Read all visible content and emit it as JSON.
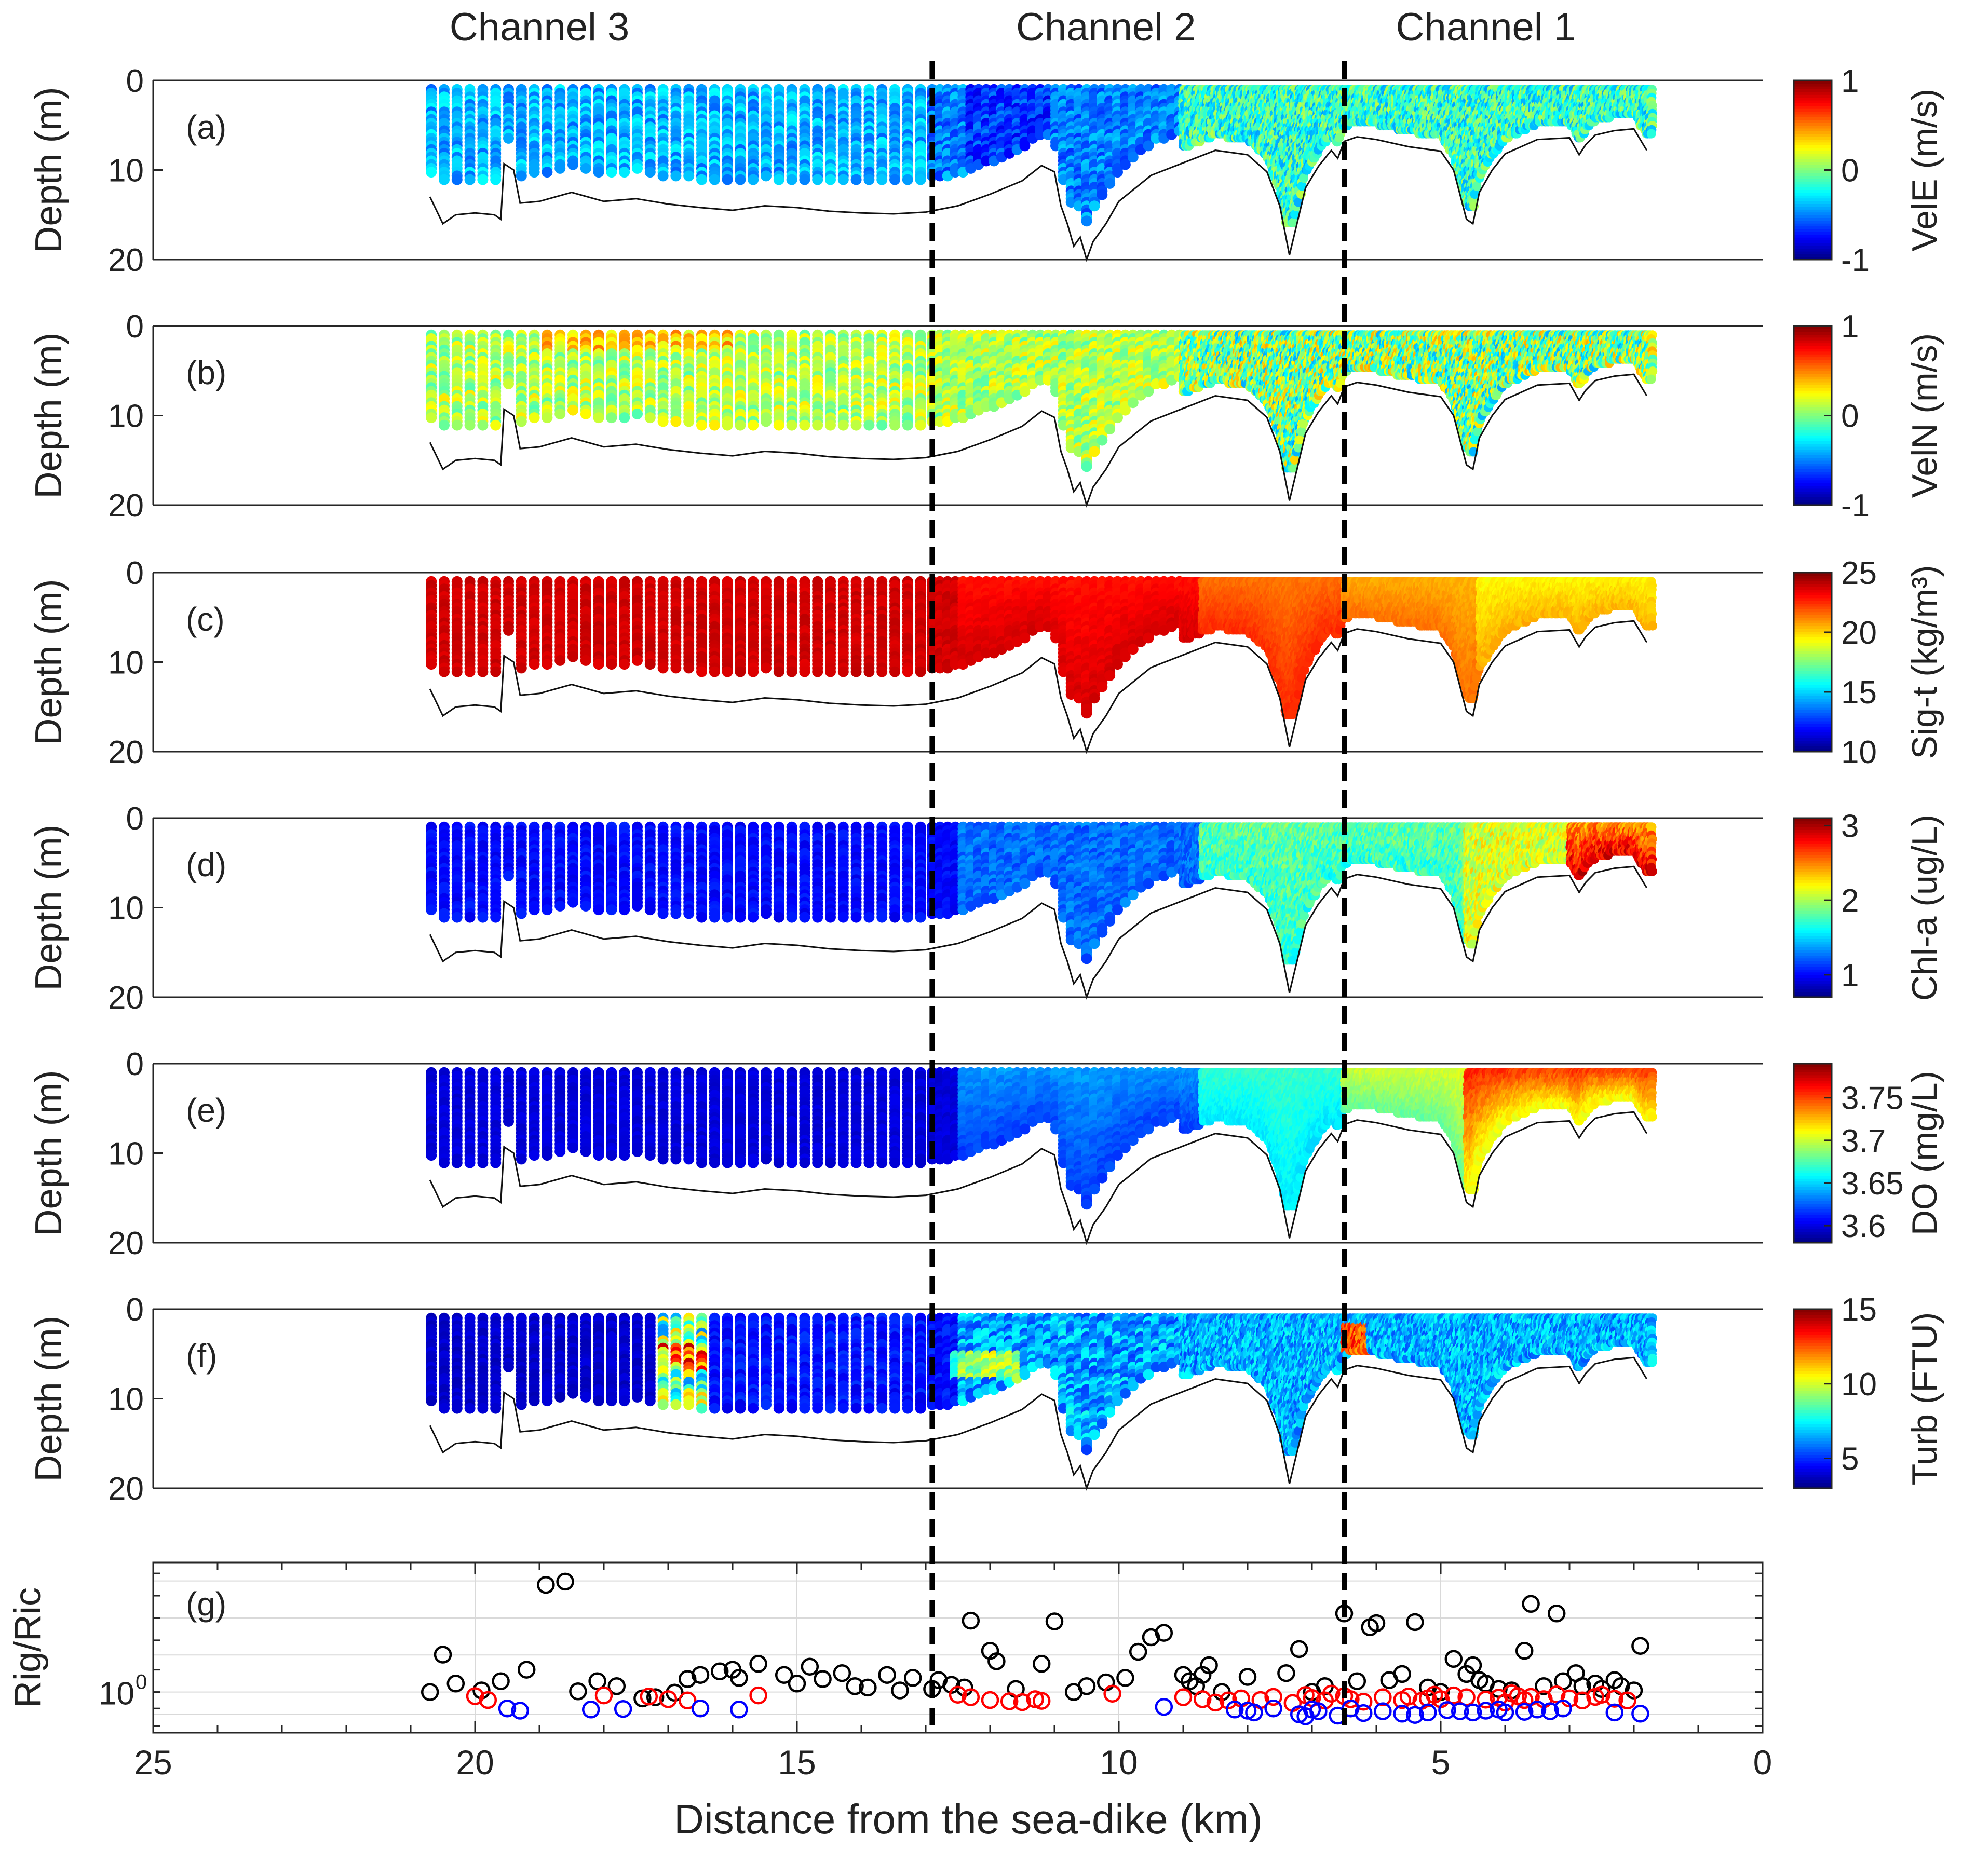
{
  "chart_data": {
    "type": "multi-panel profile",
    "channel_labels": [
      "Channel 3",
      "Channel 2",
      "Channel 1"
    ],
    "channel_label_positions_km": [
      19,
      10.2,
      4.3
    ],
    "divider_positions_km": [
      12.9,
      6.5
    ],
    "x_axis": {
      "label": "Distance from the sea-dike (km)",
      "range": [
        25,
        0
      ],
      "ticks": [
        25,
        20,
        15,
        10,
        5,
        0
      ],
      "tick_labels": [
        "25",
        "20",
        "15",
        "10",
        "5",
        "0"
      ]
    },
    "depth_axis": {
      "label": "Depth (m)",
      "range": [
        0,
        20
      ],
      "ticks": [
        0,
        10,
        20
      ],
      "tick_labels": [
        "0",
        "10",
        "20"
      ]
    },
    "panels": [
      {
        "tag": "(a)",
        "variable": "VelE",
        "colorbar_label": "VelE (m/s)",
        "clim": [
          -1,
          1
        ],
        "ticks": [
          -1,
          0,
          1
        ],
        "tick_labels": [
          "-1",
          "0",
          "1"
        ],
        "pattern": "vel_e"
      },
      {
        "tag": "(b)",
        "variable": "VelN",
        "colorbar_label": "VelN (m/s)",
        "clim": [
          -1,
          1
        ],
        "ticks": [
          -1,
          0,
          1
        ],
        "tick_labels": [
          "-1",
          "0",
          "1"
        ],
        "pattern": "vel_n"
      },
      {
        "tag": "(c)",
        "variable": "Sig-t",
        "colorbar_label": "Sig-t (kg/m³)",
        "clim": [
          10,
          25
        ],
        "ticks": [
          10,
          15,
          20,
          25
        ],
        "tick_labels": [
          "10",
          "15",
          "20",
          "25"
        ],
        "pattern": "sigt"
      },
      {
        "tag": "(d)",
        "variable": "Chl-a",
        "colorbar_label": "Chl-a (ug/L)",
        "clim": [
          0.7,
          3.1
        ],
        "ticks": [
          1,
          2,
          3
        ],
        "tick_labels": [
          "1",
          "2",
          "3"
        ],
        "pattern": "chla"
      },
      {
        "tag": "(e)",
        "variable": "DO",
        "colorbar_label": "DO (mg/L)",
        "clim": [
          3.58,
          3.79
        ],
        "ticks": [
          3.6,
          3.65,
          3.7,
          3.75
        ],
        "tick_labels": [
          "3.6",
          "3.65",
          "3.7",
          "3.75"
        ],
        "pattern": "do"
      },
      {
        "tag": "(f)",
        "variable": "Turb",
        "colorbar_label": "Turb (FTU)",
        "clim": [
          3,
          15
        ],
        "ticks": [
          5,
          10,
          15
        ],
        "tick_labels": [
          "5",
          "10",
          "15"
        ],
        "pattern": "turb"
      }
    ],
    "bathymetry": {
      "x_km": [
        20.7,
        20.5,
        20.3,
        20.0,
        19.7,
        19.6,
        19.55,
        19.4,
        19.3,
        19.0,
        18.5,
        18.0,
        17.5,
        17.0,
        16.5,
        16.0,
        15.5,
        15.0,
        14.5,
        14.0,
        13.5,
        13.0,
        12.5,
        12.0,
        11.5,
        11.2,
        11.0,
        10.9,
        10.8,
        10.7,
        10.6,
        10.5,
        10.4,
        10.2,
        10.0,
        9.5,
        9.0,
        8.5,
        8.0,
        7.7,
        7.5,
        7.35,
        7.2,
        7.1,
        6.9,
        6.7,
        6.6,
        6.5,
        6.3,
        6.0,
        5.5,
        5.0,
        4.8,
        4.6,
        4.5,
        4.4,
        4.2,
        4.0,
        3.5,
        3.0,
        2.85,
        2.75,
        2.6,
        2.3,
        2.0,
        1.8
      ],
      "depth_m": [
        13,
        16,
        15,
        14.8,
        15,
        15.5,
        9.3,
        10,
        13.7,
        13.5,
        12.5,
        13.5,
        13.2,
        13.8,
        14.2,
        14.5,
        14,
        14.2,
        14.6,
        14.8,
        14.9,
        14.7,
        14,
        12.7,
        11.2,
        9.5,
        10.2,
        14,
        16,
        18.5,
        17.5,
        20,
        18,
        16,
        13.5,
        10.6,
        9.2,
        7.8,
        8.3,
        10.2,
        14,
        19.5,
        15,
        12,
        9.6,
        7.8,
        8.7,
        6.8,
        6.3,
        6.6,
        7.4,
        7.9,
        10,
        15.5,
        16,
        12.5,
        10,
        8.2,
        6.6,
        6.4,
        8.3,
        7.2,
        6.1,
        5.6,
        5.4,
        7.8
      ]
    },
    "richardson_panel": {
      "tag": "(g)",
      "ylabel": "Rig/Ric",
      "y_scale": "log",
      "y_tick_labels": [
        "10",
        "0"
      ],
      "black": [
        [
          20.7,
          1.0
        ],
        [
          20.5,
          3.2
        ],
        [
          20.3,
          1.3
        ],
        [
          19.9,
          1.05
        ],
        [
          19.6,
          1.4
        ],
        [
          19.2,
          2.0
        ],
        [
          18.9,
          28
        ],
        [
          18.6,
          31
        ],
        [
          18.4,
          1.02
        ],
        [
          18.1,
          1.4
        ],
        [
          17.8,
          1.2
        ],
        [
          17.4,
          0.82
        ],
        [
          17.2,
          0.85
        ],
        [
          16.9,
          0.98
        ],
        [
          16.7,
          1.5
        ],
        [
          16.5,
          1.7
        ],
        [
          16.2,
          1.9
        ],
        [
          16.0,
          2.0
        ],
        [
          15.9,
          1.55
        ],
        [
          15.6,
          2.4
        ],
        [
          15.2,
          1.7
        ],
        [
          15.0,
          1.3
        ],
        [
          14.8,
          2.2
        ],
        [
          14.6,
          1.5
        ],
        [
          14.3,
          1.8
        ],
        [
          14.1,
          1.2
        ],
        [
          13.9,
          1.15
        ],
        [
          13.6,
          1.7
        ],
        [
          13.4,
          1.05
        ],
        [
          13.2,
          1.55
        ],
        [
          12.9,
          1.1
        ],
        [
          12.8,
          1.45
        ],
        [
          12.6,
          1.25
        ],
        [
          12.4,
          1.15
        ],
        [
          12.3,
          9.2
        ],
        [
          12.0,
          3.6
        ],
        [
          11.9,
          2.6
        ],
        [
          11.6,
          1.1
        ],
        [
          11.2,
          2.4
        ],
        [
          11.0,
          9.0
        ],
        [
          10.7,
          1.0
        ],
        [
          10.5,
          1.2
        ],
        [
          10.2,
          1.35
        ],
        [
          9.9,
          1.55
        ],
        [
          9.7,
          3.5
        ],
        [
          9.5,
          5.5
        ],
        [
          9.3,
          6.3
        ],
        [
          9.0,
          1.7
        ],
        [
          8.9,
          1.4
        ],
        [
          8.8,
          1.2
        ],
        [
          8.7,
          1.7
        ],
        [
          8.6,
          2.3
        ],
        [
          8.4,
          1.0
        ],
        [
          8.0,
          1.6
        ],
        [
          7.4,
          1.8
        ],
        [
          7.2,
          3.8
        ],
        [
          7.0,
          1.0
        ],
        [
          6.8,
          1.2
        ],
        [
          6.5,
          11.5
        ],
        [
          6.3,
          1.4
        ],
        [
          6.1,
          7.5
        ],
        [
          6.0,
          8.5
        ],
        [
          5.8,
          1.45
        ],
        [
          5.6,
          1.75
        ],
        [
          5.4,
          8.8
        ],
        [
          5.2,
          1.15
        ],
        [
          5.0,
          1.0
        ],
        [
          4.8,
          2.8
        ],
        [
          4.6,
          1.75
        ],
        [
          4.5,
          2.3
        ],
        [
          4.4,
          1.45
        ],
        [
          4.3,
          1.3
        ],
        [
          4.1,
          1.1
        ],
        [
          3.9,
          1.05
        ],
        [
          3.7,
          3.6
        ],
        [
          3.6,
          15.5
        ],
        [
          3.4,
          1.2
        ],
        [
          3.2,
          11.5
        ],
        [
          3.1,
          1.4
        ],
        [
          2.9,
          1.8
        ],
        [
          2.8,
          1.2
        ],
        [
          2.6,
          1.3
        ],
        [
          2.5,
          1.1
        ],
        [
          2.3,
          1.45
        ],
        [
          2.2,
          1.2
        ],
        [
          2.0,
          1.05
        ],
        [
          1.9,
          4.2
        ]
      ],
      "red": [
        [
          20.0,
          0.88
        ],
        [
          19.8,
          0.78
        ],
        [
          18.0,
          0.9
        ],
        [
          17.3,
          0.87
        ],
        [
          17.0,
          0.8
        ],
        [
          16.7,
          0.77
        ],
        [
          15.6,
          0.9
        ],
        [
          12.5,
          0.92
        ],
        [
          12.3,
          0.85
        ],
        [
          12.0,
          0.78
        ],
        [
          11.7,
          0.75
        ],
        [
          11.5,
          0.73
        ],
        [
          11.3,
          0.8
        ],
        [
          11.2,
          0.76
        ],
        [
          10.1,
          0.95
        ],
        [
          9.0,
          0.85
        ],
        [
          8.7,
          0.8
        ],
        [
          8.5,
          0.72
        ],
        [
          8.3,
          0.77
        ],
        [
          8.1,
          0.82
        ],
        [
          7.8,
          0.78
        ],
        [
          7.6,
          0.86
        ],
        [
          7.3,
          0.71
        ],
        [
          7.1,
          0.91
        ],
        [
          7.0,
          0.83
        ],
        [
          6.8,
          0.77
        ],
        [
          6.7,
          0.95
        ],
        [
          6.5,
          0.88
        ],
        [
          6.4,
          0.8
        ],
        [
          6.2,
          0.74
        ],
        [
          5.9,
          0.85
        ],
        [
          5.6,
          0.78
        ],
        [
          5.5,
          0.87
        ],
        [
          5.3,
          0.76
        ],
        [
          5.2,
          0.82
        ],
        [
          5.1,
          0.92
        ],
        [
          5.0,
          0.8
        ],
        [
          4.8,
          0.9
        ],
        [
          4.6,
          0.85
        ],
        [
          4.3,
          0.79
        ],
        [
          4.1,
          0.84
        ],
        [
          4.0,
          0.72
        ],
        [
          3.9,
          0.96
        ],
        [
          3.8,
          0.88
        ],
        [
          3.7,
          0.78
        ],
        [
          3.6,
          0.86
        ],
        [
          3.4,
          0.8
        ],
        [
          3.2,
          0.93
        ],
        [
          3.0,
          0.82
        ],
        [
          2.8,
          0.77
        ],
        [
          2.6,
          0.86
        ],
        [
          2.5,
          0.92
        ],
        [
          2.3,
          0.81
        ],
        [
          2.1,
          0.77
        ]
      ],
      "blue": [
        [
          19.5,
          0.6
        ],
        [
          19.3,
          0.56
        ],
        [
          18.2,
          0.58
        ],
        [
          17.7,
          0.59
        ],
        [
          16.5,
          0.6
        ],
        [
          15.9,
          0.58
        ],
        [
          9.3,
          0.63
        ],
        [
          8.2,
          0.58
        ],
        [
          8.0,
          0.56
        ],
        [
          7.9,
          0.53
        ],
        [
          7.6,
          0.6
        ],
        [
          7.2,
          0.5
        ],
        [
          7.1,
          0.47
        ],
        [
          7.0,
          0.58
        ],
        [
          6.9,
          0.55
        ],
        [
          6.6,
          0.48
        ],
        [
          6.4,
          0.6
        ],
        [
          6.2,
          0.52
        ],
        [
          5.9,
          0.55
        ],
        [
          5.6,
          0.51
        ],
        [
          5.4,
          0.49
        ],
        [
          5.2,
          0.53
        ],
        [
          4.9,
          0.57
        ],
        [
          4.7,
          0.55
        ],
        [
          4.5,
          0.53
        ],
        [
          4.3,
          0.56
        ],
        [
          4.1,
          0.58
        ],
        [
          4.0,
          0.53
        ],
        [
          3.7,
          0.54
        ],
        [
          3.5,
          0.58
        ],
        [
          3.3,
          0.55
        ],
        [
          3.1,
          0.6
        ],
        [
          2.3,
          0.53
        ],
        [
          1.9,
          0.51
        ]
      ]
    }
  }
}
